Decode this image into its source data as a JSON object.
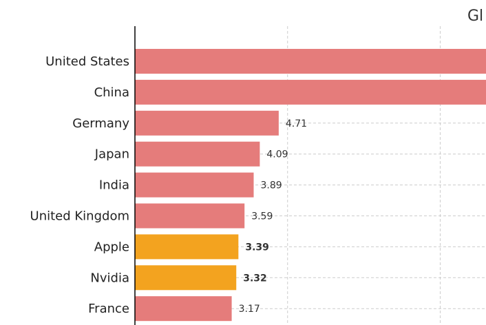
{
  "chart_data": {
    "type": "bar",
    "orientation": "horizontal",
    "title": "Gl",
    "categories": [
      "United States",
      "China",
      "Germany",
      "Japan",
      "India",
      "United Kingdom",
      "Apple",
      "Nvidia",
      "France"
    ],
    "values": [
      null,
      null,
      4.71,
      4.09,
      3.89,
      3.59,
      3.39,
      3.32,
      3.17
    ],
    "value_labels": [
      "",
      "",
      "4.71",
      "4.09",
      "3.89",
      "3.59",
      "3.39",
      "3.32",
      "3.17"
    ],
    "highlighted": [
      "Apple",
      "Nvidia"
    ],
    "xlim": [
      0,
      11.5
    ],
    "grid": "vertical dashed",
    "xlabel": "",
    "ylabel": ""
  },
  "colors": {
    "bar_default": "#e57c7b",
    "bar_highlight": "#f3a31f",
    "grid": "#cccccc",
    "axis": "#000000",
    "text": "#222222"
  }
}
